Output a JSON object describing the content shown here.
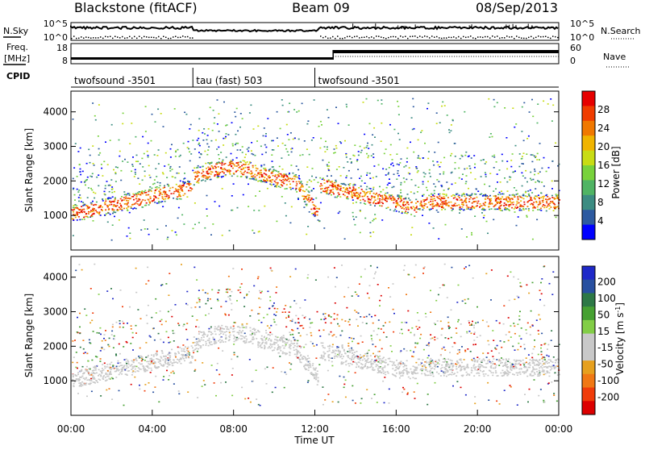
{
  "header": {
    "station": "Blackstone (fitACF)",
    "beam": "Beam 09",
    "date": "08/Sep/2013"
  },
  "top_panels": {
    "nsky": {
      "left_label": "N.Sky",
      "right_label": "N.Search",
      "left_ticks": [
        "10^5",
        "10^0"
      ],
      "right_ticks": [
        "10^5",
        "10^0"
      ]
    },
    "freq": {
      "label_top": "Freq.",
      "label_unit": "[MHz]",
      "left_ticks": [
        "18",
        "8"
      ],
      "right_label": "Nave",
      "right_ticks": [
        "60",
        "0"
      ]
    },
    "cpid": {
      "label": "CPID",
      "segments": [
        {
          "name": "twofsound -3501",
          "start_hour": 0,
          "end_hour": 6
        },
        {
          "name": "tau (fast) 503",
          "start_hour": 6,
          "end_hour": 12
        },
        {
          "name": "twofsound -3501",
          "start_hour": 12,
          "end_hour": 24
        }
      ]
    }
  },
  "chart_data": [
    {
      "type": "heatmap",
      "name": "power",
      "ylabel": "Slant Range [km]",
      "xlabel": "",
      "x_range_hours": [
        0,
        24
      ],
      "ylim": [
        0,
        4600
      ],
      "yticks": [
        1000,
        2000,
        3000,
        4000
      ],
      "colorbar": {
        "label": "Power [dB]",
        "ticks": [
          4,
          8,
          12,
          16,
          20,
          24,
          28
        ],
        "range": [
          0,
          32
        ],
        "colors": [
          "#0000ff",
          "#2d5aa0",
          "#3c8c82",
          "#50b464",
          "#78d23c",
          "#c8dc14",
          "#f0b400",
          "#f07800",
          "#f03c00",
          "#e60000"
        ]
      }
    },
    {
      "type": "heatmap",
      "name": "velocity",
      "ylabel": "Slant Range [km]",
      "xlabel": "Time UT",
      "x_range_hours": [
        0,
        24
      ],
      "xticks": [
        "00:00",
        "04:00",
        "08:00",
        "12:00",
        "16:00",
        "20:00",
        "00:00"
      ],
      "ylim": [
        0,
        4600
      ],
      "yticks": [
        1000,
        2000,
        3000,
        4000
      ],
      "colorbar": {
        "label": "Velocity [m s",
        "label_sup": "-1",
        "label_end": "]",
        "ticks": [
          "200",
          "100",
          "50",
          "15",
          "-15",
          "-50",
          "-100",
          "-200"
        ],
        "colors": [
          "#1e28c8",
          "#2850a0",
          "#2d7846",
          "#46a032",
          "#82cd46",
          "#c8c8c8",
          "#c8c8c8",
          "#e6a01e",
          "#f07814",
          "#f03c0a",
          "#dc0000"
        ]
      }
    }
  ]
}
